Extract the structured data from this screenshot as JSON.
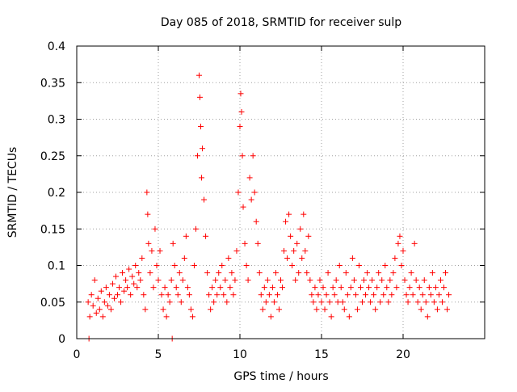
{
  "chart_data": {
    "type": "scatter",
    "title": "Day 085 of 2018, SRMTID for receiver sulp",
    "xlabel": "GPS time / hours",
    "ylabel": "SRMTID / TECUs",
    "xlim": [
      0,
      25
    ],
    "ylim": [
      0,
      0.4
    ],
    "xticks": [
      0,
      5,
      10,
      15,
      20
    ],
    "yticks": [
      0,
      0.05,
      0.1,
      0.15,
      0.2,
      0.25,
      0.3,
      0.35,
      0.4
    ],
    "xtick_labels": [
      "0",
      "5",
      "10",
      "15",
      "20"
    ],
    "ytick_labels": [
      "0",
      "0.05",
      "0.1",
      "0.15",
      "0.2",
      "0.25",
      "0.3",
      "0.35",
      "0.4"
    ],
    "grid": true,
    "marker": "plus",
    "color": "#ff0000",
    "series": [
      {
        "points": [
          [
            0.7,
            0.05
          ],
          [
            0.8,
            0.03
          ],
          [
            0.9,
            0.06
          ],
          [
            1.0,
            0.045
          ],
          [
            1.1,
            0.08
          ],
          [
            1.2,
            0.035
          ],
          [
            1.3,
            0.055
          ],
          [
            1.4,
            0.04
          ],
          [
            1.5,
            0.065
          ],
          [
            1.6,
            0.03
          ],
          [
            1.7,
            0.05
          ],
          [
            1.8,
            0.07
          ],
          [
            1.9,
            0.045
          ],
          [
            2.0,
            0.06
          ],
          [
            2.1,
            0.04
          ],
          [
            2.2,
            0.075
          ],
          [
            2.3,
            0.055
          ],
          [
            2.4,
            0.085
          ],
          [
            2.5,
            0.06
          ],
          [
            2.6,
            0.07
          ],
          [
            2.7,
            0.05
          ],
          [
            2.8,
            0.09
          ],
          [
            2.9,
            0.065
          ],
          [
            3.0,
            0.08
          ],
          [
            3.1,
            0.07
          ],
          [
            3.2,
            0.095
          ],
          [
            3.3,
            0.06
          ],
          [
            3.4,
            0.085
          ],
          [
            3.5,
            0.075
          ],
          [
            3.6,
            0.1
          ],
          [
            3.7,
            0.07
          ],
          [
            3.8,
            0.09
          ],
          [
            3.9,
            0.08
          ],
          [
            4.0,
            0.11
          ],
          [
            4.1,
            0.06
          ],
          [
            4.2,
            0.04
          ],
          [
            4.3,
            0.2
          ],
          [
            4.35,
            0.17
          ],
          [
            4.4,
            0.13
          ],
          [
            4.5,
            0.09
          ],
          [
            4.6,
            0.12
          ],
          [
            4.7,
            0.07
          ],
          [
            4.8,
            0.15
          ],
          [
            4.9,
            0.1
          ],
          [
            5.0,
            0.08
          ],
          [
            5.1,
            0.12
          ],
          [
            5.2,
            0.06
          ],
          [
            5.3,
            0.04
          ],
          [
            5.4,
            0.07
          ],
          [
            5.5,
            0.03
          ],
          [
            5.6,
            0.06
          ],
          [
            5.7,
            0.05
          ],
          [
            5.8,
            0.08
          ],
          [
            5.9,
            0.13
          ],
          [
            6.0,
            0.1
          ],
          [
            6.1,
            0.07
          ],
          [
            6.2,
            0.06
          ],
          [
            6.3,
            0.09
          ],
          [
            6.4,
            0.05
          ],
          [
            6.5,
            0.08
          ],
          [
            6.6,
            0.11
          ],
          [
            6.7,
            0.14
          ],
          [
            6.8,
            0.07
          ],
          [
            6.9,
            0.06
          ],
          [
            7.0,
            0.04
          ],
          [
            7.1,
            0.03
          ],
          [
            7.2,
            0.1
          ],
          [
            7.3,
            0.15
          ],
          [
            7.4,
            0.25
          ],
          [
            7.5,
            0.36
          ],
          [
            7.55,
            0.33
          ],
          [
            7.6,
            0.29
          ],
          [
            7.65,
            0.22
          ],
          [
            7.7,
            0.26
          ],
          [
            7.8,
            0.19
          ],
          [
            7.9,
            0.14
          ],
          [
            8.0,
            0.09
          ],
          [
            8.1,
            0.06
          ],
          [
            8.2,
            0.04
          ],
          [
            8.3,
            0.07
          ],
          [
            8.4,
            0.05
          ],
          [
            8.5,
            0.08
          ],
          [
            8.6,
            0.06
          ],
          [
            8.7,
            0.09
          ],
          [
            8.8,
            0.07
          ],
          [
            8.9,
            0.1
          ],
          [
            9.0,
            0.06
          ],
          [
            9.1,
            0.08
          ],
          [
            9.2,
            0.05
          ],
          [
            9.3,
            0.11
          ],
          [
            9.4,
            0.07
          ],
          [
            9.5,
            0.09
          ],
          [
            9.6,
            0.06
          ],
          [
            9.7,
            0.08
          ],
          [
            9.8,
            0.12
          ],
          [
            9.9,
            0.2
          ],
          [
            10.0,
            0.29
          ],
          [
            10.05,
            0.335
          ],
          [
            10.1,
            0.31
          ],
          [
            10.15,
            0.25
          ],
          [
            10.2,
            0.18
          ],
          [
            10.3,
            0.13
          ],
          [
            10.4,
            0.1
          ],
          [
            10.5,
            0.08
          ],
          [
            10.6,
            0.22
          ],
          [
            10.7,
            0.19
          ],
          [
            10.8,
            0.25
          ],
          [
            10.9,
            0.2
          ],
          [
            11.0,
            0.16
          ],
          [
            11.1,
            0.13
          ],
          [
            11.2,
            0.09
          ],
          [
            11.3,
            0.06
          ],
          [
            11.4,
            0.04
          ],
          [
            11.5,
            0.07
          ],
          [
            11.6,
            0.05
          ],
          [
            11.7,
            0.08
          ],
          [
            11.8,
            0.06
          ],
          [
            11.9,
            0.03
          ],
          [
            12.0,
            0.07
          ],
          [
            12.1,
            0.05
          ],
          [
            12.2,
            0.09
          ],
          [
            12.3,
            0.06
          ],
          [
            12.4,
            0.04
          ],
          [
            12.5,
            0.08
          ],
          [
            12.6,
            0.07
          ],
          [
            12.7,
            0.12
          ],
          [
            12.8,
            0.16
          ],
          [
            12.9,
            0.11
          ],
          [
            13.0,
            0.17
          ],
          [
            13.1,
            0.14
          ],
          [
            13.2,
            0.1
          ],
          [
            13.3,
            0.12
          ],
          [
            13.4,
            0.08
          ],
          [
            13.5,
            0.13
          ],
          [
            13.6,
            0.09
          ],
          [
            13.7,
            0.15
          ],
          [
            13.8,
            0.11
          ],
          [
            13.9,
            0.17
          ],
          [
            14.0,
            0.12
          ],
          [
            14.1,
            0.09
          ],
          [
            14.2,
            0.14
          ],
          [
            14.3,
            0.08
          ],
          [
            14.4,
            0.06
          ],
          [
            14.5,
            0.05
          ],
          [
            14.6,
            0.07
          ],
          [
            14.7,
            0.04
          ],
          [
            14.8,
            0.06
          ],
          [
            14.9,
            0.08
          ],
          [
            15.0,
            0.05
          ],
          [
            15.1,
            0.07
          ],
          [
            15.2,
            0.04
          ],
          [
            15.3,
            0.06
          ],
          [
            15.4,
            0.09
          ],
          [
            15.5,
            0.05
          ],
          [
            15.6,
            0.03
          ],
          [
            15.7,
            0.07
          ],
          [
            15.8,
            0.06
          ],
          [
            15.9,
            0.08
          ],
          [
            16.0,
            0.05
          ],
          [
            16.1,
            0.1
          ],
          [
            16.2,
            0.07
          ],
          [
            16.3,
            0.05
          ],
          [
            16.4,
            0.04
          ],
          [
            16.5,
            0.09
          ],
          [
            16.6,
            0.06
          ],
          [
            16.7,
            0.03
          ],
          [
            16.8,
            0.07
          ],
          [
            16.9,
            0.11
          ],
          [
            17.0,
            0.08
          ],
          [
            17.1,
            0.06
          ],
          [
            17.2,
            0.04
          ],
          [
            17.3,
            0.1
          ],
          [
            17.4,
            0.07
          ],
          [
            17.5,
            0.05
          ],
          [
            17.6,
            0.08
          ],
          [
            17.7,
            0.06
          ],
          [
            17.8,
            0.09
          ],
          [
            17.9,
            0.07
          ],
          [
            18.0,
            0.05
          ],
          [
            18.1,
            0.08
          ],
          [
            18.2,
            0.06
          ],
          [
            18.3,
            0.04
          ],
          [
            18.4,
            0.07
          ],
          [
            18.5,
            0.09
          ],
          [
            18.6,
            0.05
          ],
          [
            18.7,
            0.08
          ],
          [
            18.8,
            0.06
          ],
          [
            18.9,
            0.1
          ],
          [
            19.0,
            0.07
          ],
          [
            19.1,
            0.05
          ],
          [
            19.2,
            0.08
          ],
          [
            19.3,
            0.06
          ],
          [
            19.4,
            0.09
          ],
          [
            19.5,
            0.11
          ],
          [
            19.6,
            0.07
          ],
          [
            19.7,
            0.13
          ],
          [
            19.8,
            0.14
          ],
          [
            19.9,
            0.1
          ],
          [
            20.0,
            0.12
          ],
          [
            20.1,
            0.08
          ],
          [
            20.2,
            0.06
          ],
          [
            20.3,
            0.05
          ],
          [
            20.4,
            0.07
          ],
          [
            20.5,
            0.09
          ],
          [
            20.6,
            0.06
          ],
          [
            20.7,
            0.13
          ],
          [
            20.8,
            0.08
          ],
          [
            20.9,
            0.05
          ],
          [
            21.0,
            0.07
          ],
          [
            21.1,
            0.04
          ],
          [
            21.2,
            0.06
          ],
          [
            21.3,
            0.08
          ],
          [
            21.4,
            0.05
          ],
          [
            21.5,
            0.03
          ],
          [
            21.6,
            0.07
          ],
          [
            21.7,
            0.06
          ],
          [
            21.8,
            0.09
          ],
          [
            21.9,
            0.05
          ],
          [
            22.0,
            0.07
          ],
          [
            22.1,
            0.04
          ],
          [
            22.2,
            0.06
          ],
          [
            22.3,
            0.08
          ],
          [
            22.4,
            0.05
          ],
          [
            22.5,
            0.07
          ],
          [
            22.6,
            0.09
          ],
          [
            22.7,
            0.04
          ],
          [
            22.8,
            0.06
          ],
          [
            0.75,
            0.0
          ],
          [
            5.85,
            0.0
          ]
        ]
      }
    ]
  }
}
